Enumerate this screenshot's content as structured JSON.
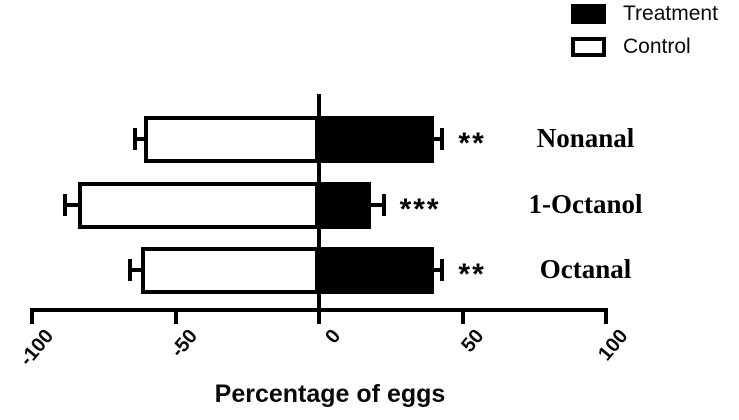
{
  "legend": {
    "items": [
      {
        "label": "Treatment",
        "swatch_color": "#000000"
      },
      {
        "label": "Control",
        "swatch_color": "#ffffff"
      }
    ]
  },
  "chart_data": {
    "type": "bar",
    "orientation": "horizontal",
    "title": "",
    "xlabel": "Percentage of eggs",
    "ylabel": "",
    "xlim": [
      -100,
      100
    ],
    "xticks": [
      -100,
      -50,
      0,
      50,
      100
    ],
    "xtick_labels": [
      "-100",
      "-50",
      "0",
      "50",
      "100"
    ],
    "grid": false,
    "legend_position": "top-right",
    "categories": [
      "Nonanal",
      "1-Octanol",
      "Octanal"
    ],
    "series": [
      {
        "name": "Treatment",
        "fill": "#000000",
        "values": [
          40,
          18,
          40
        ],
        "errors": [
          3,
          4.5,
          3
        ]
      },
      {
        "name": "Control",
        "fill": "#ffffff",
        "values": [
          -61,
          -84,
          -62
        ],
        "errors": [
          3,
          4.5,
          4
        ]
      }
    ],
    "significance": [
      "**",
      "***",
      "**"
    ],
    "bar_outline_color": "#000000"
  }
}
